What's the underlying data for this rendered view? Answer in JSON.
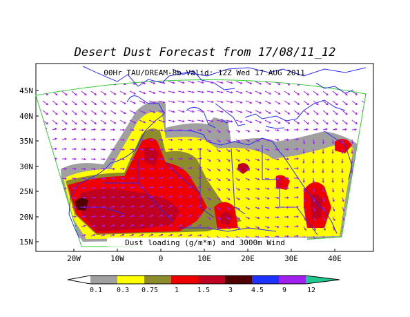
{
  "title": "Desert Dust Forecast from 17/08/11_12",
  "subtitle": "00Hr TAU/DREAM-8b Valid: 12Z Wed 17 AUG 2011",
  "field_label": "Dust loading (g/m*m) and 3000m Wind",
  "lat_labels": [
    "45N",
    "40N",
    "35N",
    "30N",
    "25N",
    "20N",
    "15N"
  ],
  "lon_labels": [
    "20W",
    "10W",
    "0",
    "10E",
    "20E",
    "30E",
    "40E"
  ],
  "colorbar": {
    "levels": [
      "0.1",
      "0.3",
      "0.75",
      "1",
      "1.5",
      "3",
      "4.5",
      "9",
      "12"
    ],
    "colors": [
      "#ffffff",
      "#a0a0a0",
      "#ffff00",
      "#8c8c2c",
      "#ee0000",
      "#c00020",
      "#500000",
      "#1e32ff",
      "#a020f0",
      "#20c890"
    ]
  },
  "map_colors": {
    "coastline": "#2828ff",
    "domain_outline": "#30d030",
    "wind_arrows": "#a020f0"
  }
}
